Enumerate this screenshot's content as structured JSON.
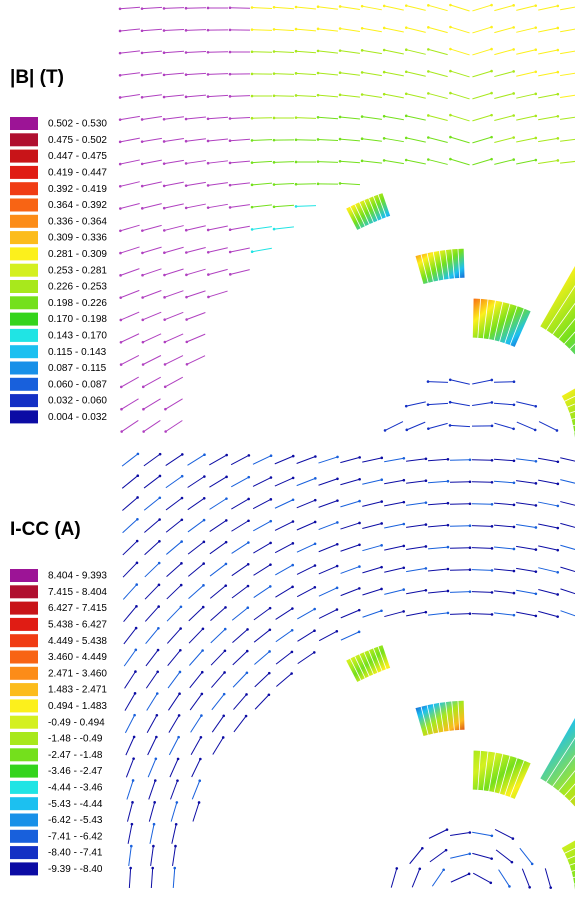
{
  "panels": [
    {
      "title": "|B|  (T)",
      "legend": [
        {
          "color": "#9c1496",
          "label": "0.502 -  0.530"
        },
        {
          "color": "#b01030",
          "label": "0.475 -  0.502"
        },
        {
          "color": "#c81418",
          "label": "0.447 -  0.475"
        },
        {
          "color": "#e01c14",
          "label": "0.419 -  0.447"
        },
        {
          "color": "#f03c14",
          "label": "0.392 -  0.419"
        },
        {
          "color": "#f86414",
          "label": "0.364 -  0.392"
        },
        {
          "color": "#fc8c18",
          "label": "0.336 -  0.364"
        },
        {
          "color": "#fcbc1c",
          "label": "0.309 -  0.336"
        },
        {
          "color": "#fcf01c",
          "label": "0.281 -  0.309"
        },
        {
          "color": "#d4f020",
          "label": "0.253 -  0.281"
        },
        {
          "color": "#a8e81c",
          "label": "0.226 -  0.253"
        },
        {
          "color": "#74e01c",
          "label": "0.198 -  0.226"
        },
        {
          "color": "#34d41c",
          "label": "0.170 -  0.198"
        },
        {
          "color": "#20e4e4",
          "label": "0.143 -  0.170"
        },
        {
          "color": "#1cc0f0",
          "label": "0.115 -  0.143"
        },
        {
          "color": "#1890e8",
          "label": "0.087 -  0.115"
        },
        {
          "color": "#1860dc",
          "label": "0.060 -  0.087"
        },
        {
          "color": "#1430c4",
          "label": "0.032 -  0.060"
        },
        {
          "color": "#0c0ca4",
          "label": "0.004 -  0.032"
        }
      ]
    },
    {
      "title": "I-CC (A)",
      "legend": [
        {
          "color": "#9c1496",
          "label": "8.404 -  9.393"
        },
        {
          "color": "#b01030",
          "label": "7.415 -  8.404"
        },
        {
          "color": "#c81418",
          "label": "6.427 -  7.415"
        },
        {
          "color": "#e01c14",
          "label": "5.438 -  6.427"
        },
        {
          "color": "#f03c14",
          "label": "4.449 -  5.438"
        },
        {
          "color": "#f86414",
          "label": "3.460 -  4.449"
        },
        {
          "color": "#fc8c18",
          "label": "2.471 -  3.460"
        },
        {
          "color": "#fcbc1c",
          "label": "1.483 -  2.471"
        },
        {
          "color": "#fcf01c",
          "label": "0.494 -  1.483"
        },
        {
          "color": "#d4f020",
          "label": "-0.49 -  0.494"
        },
        {
          "color": "#a8e81c",
          "label": "-1.48 -  -0.49"
        },
        {
          "color": "#74e01c",
          "label": "-2.47 -  -1.48"
        },
        {
          "color": "#34d41c",
          "label": "-3.46 -  -2.47"
        },
        {
          "color": "#20e4e4",
          "label": "-4.44 -  -3.46"
        },
        {
          "color": "#1cc0f0",
          "label": "-5.43 -  -4.44"
        },
        {
          "color": "#1890e8",
          "label": "-6.42 -  -5.43"
        },
        {
          "color": "#1860dc",
          "label": "-7.41 -  -6.42"
        },
        {
          "color": "#1430c4",
          "label": "-8.40 -  -7.41"
        },
        {
          "color": "#0c0ca4",
          "label": "-9.39 -  -8.40"
        }
      ]
    }
  ]
}
